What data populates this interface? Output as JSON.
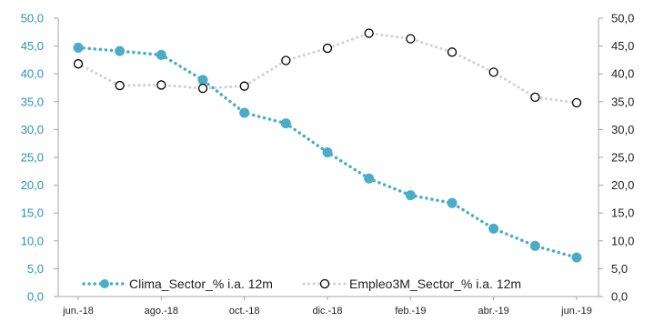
{
  "chart_data": {
    "type": "line",
    "x_tick_labels": [
      "jun.-18",
      "ago.-18",
      "oct.-18",
      "dic.-18",
      "feb.-19",
      "abr.-19",
      "jun.-19"
    ],
    "y_left": {
      "min": 0,
      "max": 50,
      "step": 5,
      "tick_labels": [
        "0,0",
        "5,0",
        "10,0",
        "15,0",
        "20,0",
        "25,0",
        "30,0",
        "35,0",
        "40,0",
        "45,0",
        "50,0"
      ]
    },
    "y_right": {
      "min": 0,
      "max": 50,
      "step": 5,
      "tick_labels": [
        "0,0",
        "5,0",
        "10,0",
        "15,0",
        "20,0",
        "25,0",
        "30,0",
        "35,0",
        "40,0",
        "45,0",
        "50,0"
      ]
    },
    "grid": false,
    "legend_position": "bottom-inside",
    "series": [
      {
        "name": "Clima_Sector_% i.a. 12m",
        "axis": "left",
        "color": "#4bacc6",
        "marker": "filled-circle",
        "x": [
          "jun.-18",
          "jul.-18",
          "ago.-18",
          "sep.-18",
          "oct.-18",
          "nov.-18",
          "dic.-18",
          "ene.-19",
          "feb.-19",
          "mar.-19",
          "abr.-19",
          "may.-19",
          "jun.-19"
        ],
        "values": [
          44.7,
          44.1,
          43.4,
          38.9,
          33.0,
          31.1,
          25.9,
          21.2,
          18.2,
          16.8,
          12.2,
          9.1,
          7.0
        ]
      },
      {
        "name": "Empleo3M_Sector_% i.a. 12m",
        "axis": "right",
        "color": "#d0d0d0",
        "marker": "open-circle",
        "x": [
          "jun.-18",
          "jul.-18",
          "ago.-18",
          "sep.-18",
          "oct.-18",
          "nov.-18",
          "dic.-18",
          "ene.-19",
          "feb.-19",
          "mar.-19",
          "abr.-19",
          "may.-19",
          "jun.-19"
        ],
        "values": [
          41.8,
          37.9,
          38.0,
          37.4,
          37.8,
          42.4,
          44.6,
          47.3,
          46.3,
          43.9,
          40.3,
          35.8,
          34.8
        ]
      }
    ]
  }
}
